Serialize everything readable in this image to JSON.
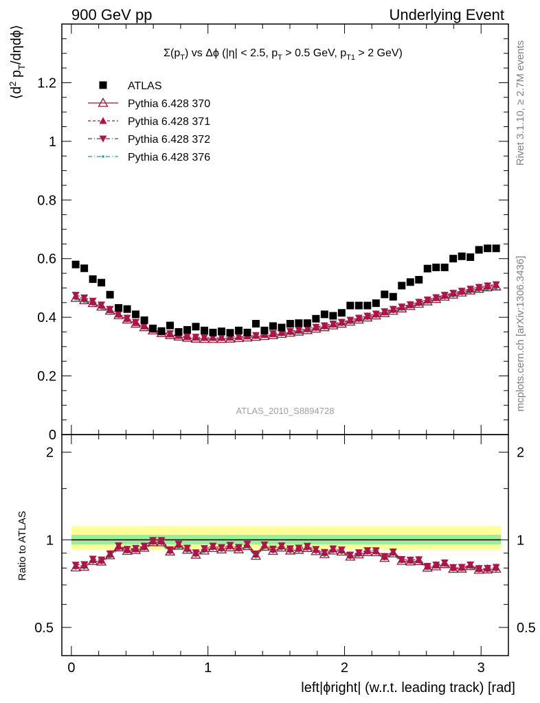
{
  "header": {
    "left": "900 GeV pp",
    "right": "Underlying Event"
  },
  "side": {
    "rivet": "Rivet 3.1.10, ≥ 2.7M events",
    "mcplots": "mcplots.cern.ch [arXiv:1306.3436]"
  },
  "chart_data": [
    {
      "type": "scatter",
      "title": "Σ(p_T) vs Δϕ (|η| < 2.5, p_T > 0.5 GeV, p_T1 > 2 GeV)",
      "ylabel": "⟨d² p_T/dηdϕ⟩",
      "xlabel": "left|ϕright| (w.r.t. leading track) [rad]",
      "analysis_label": "ATLAS_2010_S8894728",
      "xlim": [
        -0.07,
        3.2
      ],
      "ylim": [
        0,
        1.4
      ],
      "yticks": [
        0,
        0.2,
        0.4,
        0.6,
        0.8,
        1,
        1.2
      ],
      "ytick_labels": [
        "0",
        "0.2",
        "0.4",
        "0.6",
        "0.8",
        "1",
        "1.2"
      ],
      "legend_position": "top-left",
      "series": [
        {
          "name": "ATLAS",
          "color": "#000000",
          "marker": "filled-square",
          "values": [
            0.58,
            0.567,
            0.53,
            0.518,
            0.477,
            0.432,
            0.428,
            0.41,
            0.39,
            0.362,
            0.353,
            0.372,
            0.35,
            0.357,
            0.368,
            0.355,
            0.348,
            0.352,
            0.347,
            0.355,
            0.348,
            0.378,
            0.355,
            0.37,
            0.365,
            0.378,
            0.38,
            0.38,
            0.395,
            0.41,
            0.405,
            0.415,
            0.44,
            0.44,
            0.44,
            0.448,
            0.478,
            0.47,
            0.508,
            0.52,
            0.528,
            0.566,
            0.57,
            0.57,
            0.6,
            0.608,
            0.605,
            0.63,
            0.635,
            0.635
          ]
        },
        {
          "name": "Pythia 6.428 370",
          "color": "#8b1a2f",
          "marker": "open-triangle",
          "line": "solid",
          "values": [
            0.466,
            0.458,
            0.448,
            0.436,
            0.422,
            0.407,
            0.392,
            0.378,
            0.366,
            0.355,
            0.346,
            0.339,
            0.334,
            0.33,
            0.327,
            0.326,
            0.326,
            0.326,
            0.327,
            0.329,
            0.331,
            0.333,
            0.336,
            0.339,
            0.343,
            0.347,
            0.351,
            0.356,
            0.361,
            0.366,
            0.372,
            0.378,
            0.385,
            0.392,
            0.399,
            0.406,
            0.414,
            0.422,
            0.43,
            0.438,
            0.446,
            0.454,
            0.462,
            0.47,
            0.477,
            0.484,
            0.491,
            0.497,
            0.502,
            0.505
          ]
        },
        {
          "name": "Pythia 6.428 371",
          "color": "#b0104a",
          "marker": "filled-triangle-up",
          "line": "dashed",
          "values": [
            0.472,
            0.463,
            0.452,
            0.44,
            0.425,
            0.41,
            0.395,
            0.381,
            0.369,
            0.358,
            0.349,
            0.342,
            0.337,
            0.333,
            0.331,
            0.33,
            0.33,
            0.33,
            0.331,
            0.333,
            0.335,
            0.337,
            0.34,
            0.343,
            0.347,
            0.351,
            0.355,
            0.36,
            0.365,
            0.37,
            0.376,
            0.382,
            0.389,
            0.396,
            0.403,
            0.41,
            0.418,
            0.426,
            0.434,
            0.442,
            0.45,
            0.458,
            0.466,
            0.474,
            0.481,
            0.488,
            0.495,
            0.501,
            0.506,
            0.51
          ]
        },
        {
          "name": "Pythia 6.428 372",
          "color": "#a8164a",
          "marker": "filled-triangle-down",
          "line": "dashdot",
          "values": [
            0.476,
            0.467,
            0.456,
            0.443,
            0.428,
            0.413,
            0.398,
            0.384,
            0.372,
            0.361,
            0.352,
            0.345,
            0.339,
            0.335,
            0.333,
            0.332,
            0.332,
            0.332,
            0.333,
            0.335,
            0.337,
            0.339,
            0.342,
            0.345,
            0.349,
            0.353,
            0.357,
            0.362,
            0.367,
            0.372,
            0.378,
            0.384,
            0.391,
            0.398,
            0.405,
            0.412,
            0.42,
            0.428,
            0.436,
            0.444,
            0.452,
            0.46,
            0.468,
            0.476,
            0.483,
            0.49,
            0.497,
            0.503,
            0.508,
            0.512
          ]
        },
        {
          "name": "Pythia 6.428 376",
          "color": "#1a9e8a",
          "marker": "small-dot",
          "line": "dashdot",
          "values": [
            0.462,
            0.453,
            0.443,
            0.431,
            0.417,
            0.402,
            0.388,
            0.374,
            0.362,
            0.351,
            0.342,
            0.335,
            0.33,
            0.326,
            0.324,
            0.323,
            0.323,
            0.323,
            0.324,
            0.326,
            0.328,
            0.33,
            0.333,
            0.336,
            0.339,
            0.343,
            0.347,
            0.352,
            0.357,
            0.362,
            0.368,
            0.374,
            0.381,
            0.388,
            0.395,
            0.402,
            0.41,
            0.418,
            0.426,
            0.434,
            0.442,
            0.45,
            0.458,
            0.465,
            0.472,
            0.479,
            0.485,
            0.491,
            0.495,
            0.498
          ]
        }
      ],
      "x": [
        0.0314,
        0.0942,
        0.1571,
        0.2199,
        0.2827,
        0.3456,
        0.4084,
        0.4712,
        0.5341,
        0.5969,
        0.6597,
        0.7226,
        0.7854,
        0.8482,
        0.9111,
        0.9739,
        1.0367,
        1.0996,
        1.1624,
        1.2252,
        1.2881,
        1.3509,
        1.4137,
        1.4765,
        1.5394,
        1.6022,
        1.665,
        1.7279,
        1.7907,
        1.8535,
        1.9164,
        1.9792,
        2.042,
        2.1049,
        2.1677,
        2.2305,
        2.2934,
        2.3562,
        2.419,
        2.4819,
        2.5447,
        2.6075,
        2.6704,
        2.7332,
        2.796,
        2.8588,
        2.9217,
        2.9845,
        3.0473,
        3.1102
      ]
    },
    {
      "type": "line",
      "ylabel": "Ratio to ATLAS",
      "xlabel": "left|ϕright| (w.r.t. leading track) [rad]",
      "xlim": [
        -0.07,
        3.2
      ],
      "ylim": [
        0.4,
        2.3
      ],
      "log_y": true,
      "yticks": [
        0.5,
        1,
        2
      ],
      "ytick_labels": [
        "0.5",
        "1",
        "2"
      ],
      "xticks": [
        0,
        1,
        2,
        3
      ],
      "xtick_labels": [
        "0",
        "1",
        "2",
        "3"
      ],
      "band_inner": [
        0.965,
        1.04
      ],
      "band_outer": [
        0.925,
        1.115
      ],
      "band_inner_color": "#99ee99",
      "band_outer_color": "#ffff99",
      "reference_line": 1
    }
  ]
}
